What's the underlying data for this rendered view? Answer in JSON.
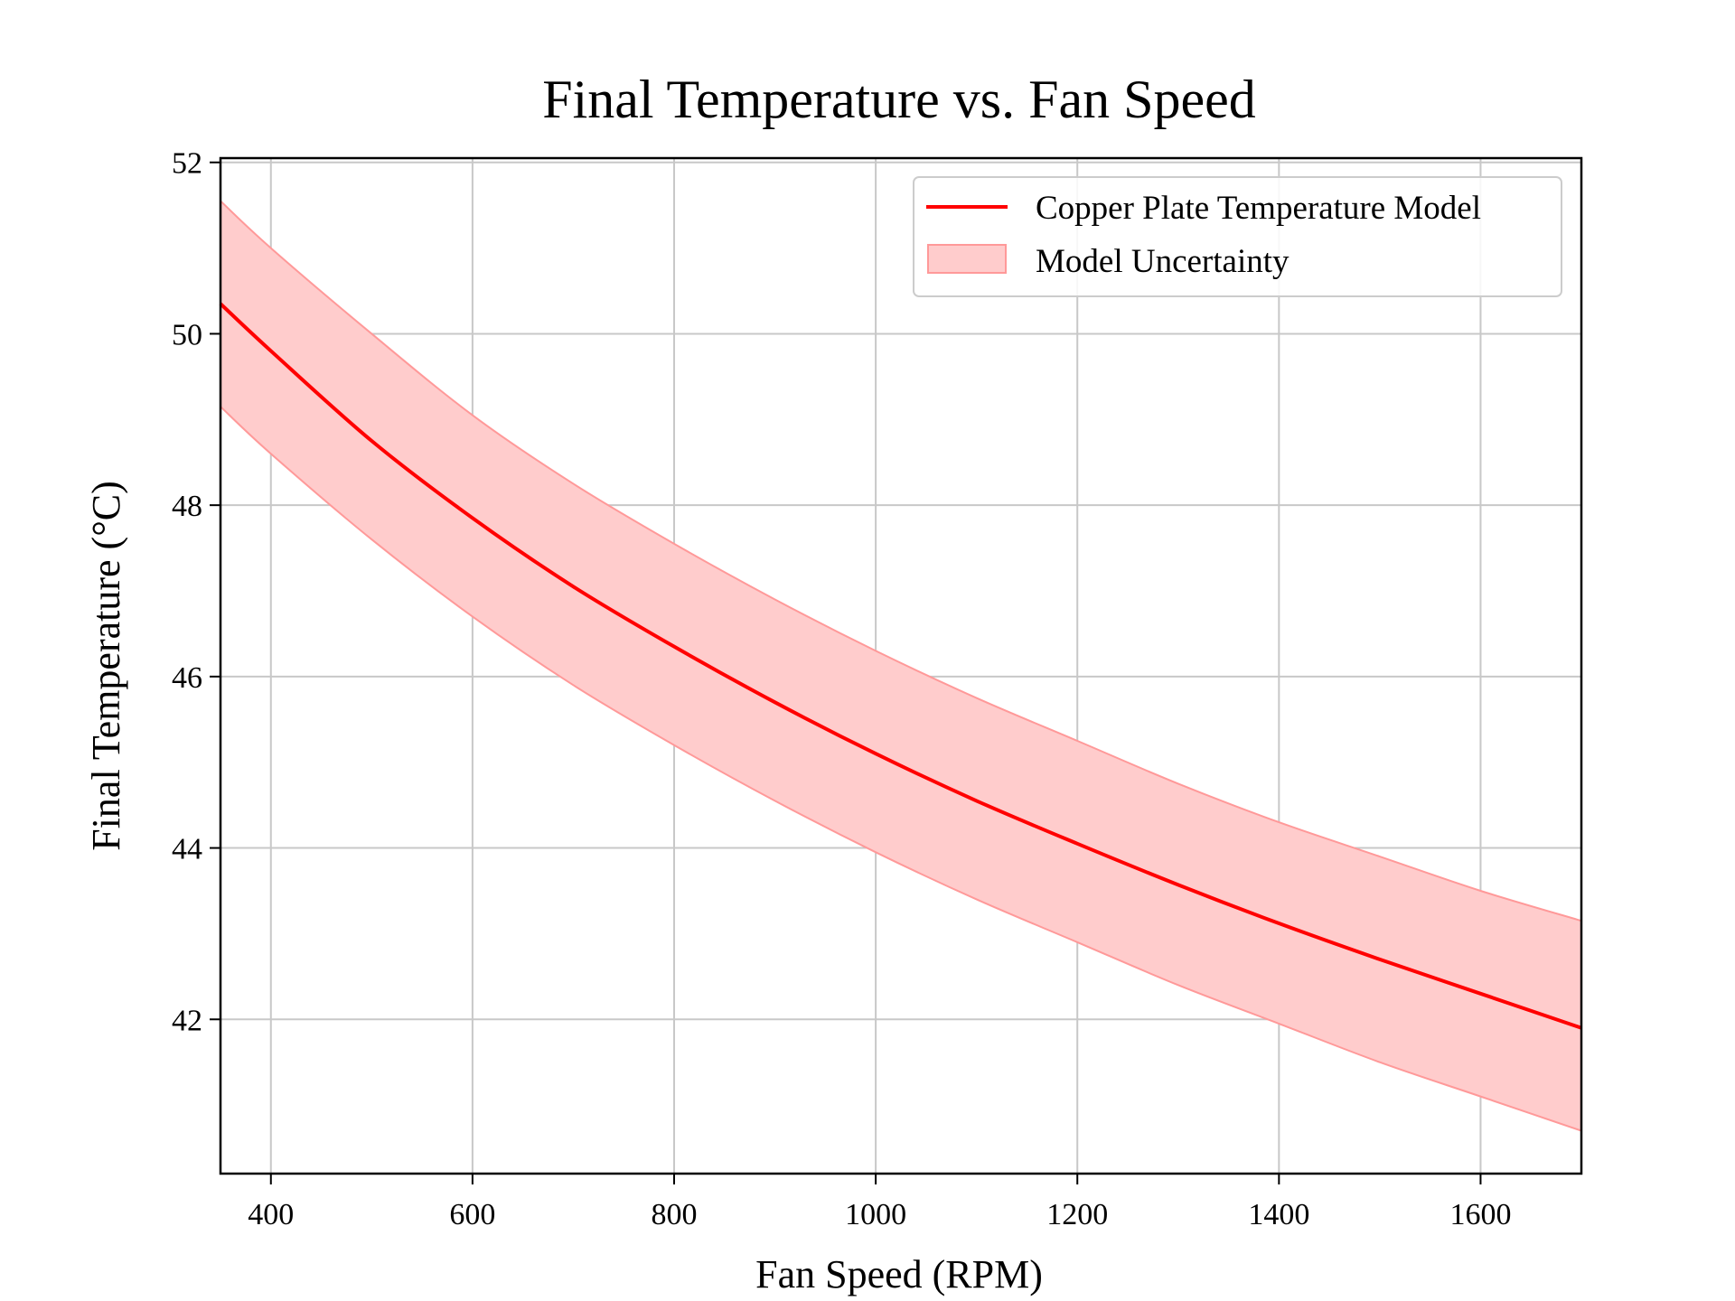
{
  "chart_data": {
    "type": "line",
    "title": "Final Temperature vs. Fan Speed",
    "xlabel": "Fan Speed (RPM)",
    "ylabel": "Final Temperature (°C)",
    "xlim": [
      350,
      1700
    ],
    "ylim": [
      40.2,
      52.05
    ],
    "xticks": [
      400,
      600,
      800,
      1000,
      1200,
      1400,
      1600
    ],
    "yticks": [
      42,
      44,
      46,
      48,
      50,
      52
    ],
    "grid": true,
    "legend_position": "top-right",
    "series": [
      {
        "name": "Copper Plate Temperature Model",
        "kind": "line",
        "color": "#ff0000",
        "x": [
          350,
          400,
          500,
          600,
          700,
          800,
          900,
          1000,
          1100,
          1200,
          1300,
          1400,
          1500,
          1600,
          1700
        ],
        "y": [
          50.35,
          49.8,
          48.75,
          47.85,
          47.05,
          46.35,
          45.7,
          45.1,
          44.55,
          44.05,
          43.57,
          43.12,
          42.7,
          42.3,
          41.9
        ]
      },
      {
        "name": "Model Uncertainty",
        "kind": "band",
        "color": "#ffcccc",
        "edge_color": "#ff9999",
        "x": [
          350,
          400,
          500,
          600,
          700,
          800,
          900,
          1000,
          1100,
          1200,
          1300,
          1400,
          1500,
          1600,
          1700
        ],
        "lower": [
          49.15,
          48.6,
          47.6,
          46.7,
          45.9,
          45.2,
          44.55,
          43.95,
          43.4,
          42.9,
          42.4,
          41.95,
          41.5,
          41.1,
          40.7
        ],
        "upper": [
          51.55,
          51.0,
          50.0,
          49.05,
          48.25,
          47.55,
          46.9,
          46.3,
          45.75,
          45.25,
          44.75,
          44.3,
          43.9,
          43.5,
          43.15
        ]
      }
    ]
  }
}
